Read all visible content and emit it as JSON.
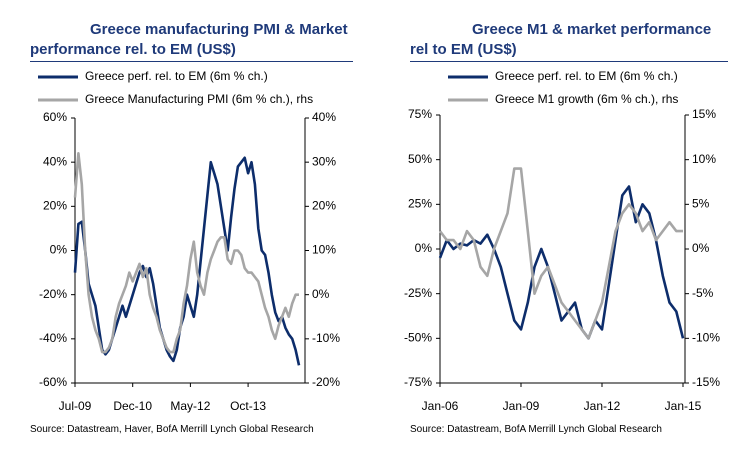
{
  "chart_data": [
    {
      "type": "line",
      "title": "Greece manufacturing PMI & Market performance rel. to EM (US$)",
      "source": "Source: Datastream, Haver, BofA Merrill Lynch Global Research",
      "categories": [
        "Jul-09",
        null,
        null,
        null,
        null,
        null,
        null,
        null,
        null,
        null,
        null,
        null,
        null,
        null,
        null,
        null,
        null,
        "Dec-10",
        null,
        null,
        null,
        null,
        null,
        null,
        null,
        null,
        null,
        null,
        null,
        null,
        null,
        null,
        null,
        null,
        "May-12",
        null,
        null,
        null,
        null,
        null,
        null,
        null,
        null,
        null,
        null,
        null,
        null,
        null,
        null,
        null,
        null,
        "Oct-13",
        null,
        null,
        null,
        null,
        null,
        null,
        null,
        null,
        null,
        null,
        null,
        null,
        null,
        null,
        null
      ],
      "ylim": [
        -60,
        60
      ],
      "yticks": [
        {
          "value": -60,
          "label": "-60%"
        },
        {
          "value": -40,
          "label": "-40%"
        },
        {
          "value": -20,
          "label": "-20%"
        },
        {
          "value": 0,
          "label": "0%"
        },
        {
          "value": 20,
          "label": "20%"
        },
        {
          "value": 40,
          "label": "40%"
        },
        {
          "value": 60,
          "label": "60%"
        }
      ],
      "y2lim": [
        -20,
        40
      ],
      "y2ticks": [
        {
          "value": -20,
          "label": "-20%"
        },
        {
          "value": -10,
          "label": "-10%"
        },
        {
          "value": 0,
          "label": "0%"
        },
        {
          "value": 10,
          "label": "10%"
        },
        {
          "value": 20,
          "label": "20%"
        },
        {
          "value": 30,
          "label": "30%"
        },
        {
          "value": 40,
          "label": "40%"
        }
      ],
      "series": [
        {
          "name": "Greece perf. rel. to EM (6m % ch.)",
          "color": "#0d2d6b",
          "values": [
            -10,
            12,
            13,
            0,
            -15,
            -20,
            -25,
            -35,
            -45,
            -47,
            -45,
            -40,
            -35,
            -30,
            -25,
            -30,
            -25,
            -20,
            -15,
            -10,
            -7,
            -12,
            -8,
            -15,
            -25,
            -35,
            -40,
            -45,
            -48,
            -50,
            -45,
            -35,
            -30,
            -20,
            -25,
            -30,
            -20,
            -5,
            10,
            25,
            40,
            35,
            30,
            20,
            10,
            0,
            15,
            28,
            38,
            40,
            42,
            35,
            40,
            30,
            10,
            0,
            -2,
            -10,
            -20,
            -28,
            -32,
            -30,
            -35,
            -38,
            -40,
            -45,
            -52
          ]
        },
        {
          "name": "Greece Manufacturing PMI (6m % ch.), rhs",
          "color": "#a6a6a6",
          "axis": "y2",
          "values": [
            22,
            32,
            25,
            10,
            0,
            -5,
            -8,
            -10,
            -13,
            -13,
            -12,
            -10,
            -5,
            -2,
            0,
            2,
            5,
            3,
            5,
            7,
            4,
            6,
            0,
            -3,
            -5,
            -8,
            -10,
            -12,
            -13,
            -13,
            -10,
            -8,
            -2,
            2,
            8,
            12,
            5,
            2,
            0,
            5,
            8,
            10,
            12,
            13,
            13,
            8,
            7,
            10,
            10,
            9,
            6,
            5,
            5,
            4,
            3,
            0,
            -3,
            -5,
            -8,
            -10,
            -7,
            -5,
            -3,
            -5,
            -2,
            0,
            0
          ]
        }
      ]
    },
    {
      "type": "line",
      "title": "Greece M1 & market performance rel to EM (US$)",
      "source": "Source: Datastream,  BofA Merrill Lynch Global Research",
      "categories": [
        "Jan-06",
        null,
        null,
        null,
        null,
        null,
        null,
        null,
        null,
        null,
        null,
        null,
        "Jan-09",
        null,
        null,
        null,
        null,
        null,
        null,
        null,
        null,
        null,
        null,
        null,
        "Jan-12",
        null,
        null,
        null,
        null,
        null,
        null,
        null,
        null,
        null,
        null,
        null,
        "Jan-15"
      ],
      "ylim": [
        -75,
        75
      ],
      "yticks": [
        {
          "value": -75,
          "label": "-75%"
        },
        {
          "value": -50,
          "label": "-50%"
        },
        {
          "value": -25,
          "label": "-25%"
        },
        {
          "value": 0,
          "label": "0%"
        },
        {
          "value": 25,
          "label": "25%"
        },
        {
          "value": 50,
          "label": "50%"
        },
        {
          "value": 75,
          "label": "75%"
        }
      ],
      "y2lim": [
        -15,
        15
      ],
      "y2ticks": [
        {
          "value": -15,
          "label": "-15%"
        },
        {
          "value": -10,
          "label": "-10%"
        },
        {
          "value": -5,
          "label": "-5%"
        },
        {
          "value": 0,
          "label": "0%"
        },
        {
          "value": 5,
          "label": "5%"
        },
        {
          "value": 10,
          "label": "10%"
        },
        {
          "value": 15,
          "label": "15%"
        }
      ],
      "series": [
        {
          "name": "Greece perf. rel. to EM (6m % ch.)",
          "color": "#0d2d6b",
          "values": [
            -5,
            5,
            0,
            3,
            2,
            5,
            3,
            8,
            0,
            -10,
            -25,
            -40,
            -45,
            -30,
            -10,
            0,
            -10,
            -25,
            -40,
            -35,
            -30,
            -45,
            -50,
            -40,
            -45,
            -20,
            5,
            30,
            35,
            15,
            25,
            20,
            5,
            -15,
            -30,
            -35,
            -50
          ]
        },
        {
          "name": "Greece M1 growth (6m % ch.), rhs",
          "color": "#a6a6a6",
          "axis": "y2",
          "values": [
            2,
            1,
            1,
            0,
            2,
            1,
            -2,
            -3,
            0,
            2,
            4,
            9,
            9,
            2,
            -5,
            -3,
            -2,
            -4,
            -6,
            -7,
            -8,
            -9,
            -10,
            -8,
            -6,
            -2,
            2,
            4,
            5,
            4,
            2,
            3,
            1,
            2,
            3,
            2,
            2
          ]
        }
      ]
    }
  ]
}
